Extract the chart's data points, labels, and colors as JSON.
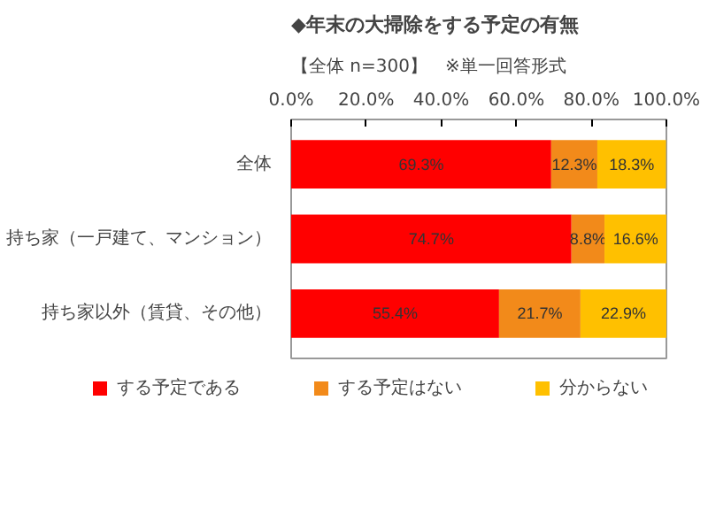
{
  "chart_data": {
    "type": "bar",
    "orientation": "horizontal",
    "stacked": true,
    "title": "◆年末の大掃除をする予定の有無",
    "subtitle": "【全体 n=300】　※単一回答形式",
    "categories": [
      "全体",
      "持ち家（一戸建て、マンション）",
      "持ち家以外（賃貸、その他）"
    ],
    "series": [
      {
        "name": "する予定である",
        "color": "#ff0000",
        "values": [
          69.3,
          74.7,
          55.4
        ],
        "value_labels": [
          "69.3%",
          "74.7%",
          "55.4%"
        ]
      },
      {
        "name": "する予定はない",
        "color": "#f28a1a",
        "values": [
          12.3,
          8.8,
          21.7
        ],
        "value_labels": [
          "12.3%",
          "8.8%",
          "21.7%"
        ]
      },
      {
        "name": "分からない",
        "color": "#ffc000",
        "values": [
          18.3,
          16.6,
          22.9
        ],
        "value_labels": [
          "18.3%",
          "16.6%",
          "22.9%"
        ]
      }
    ],
    "xlim": [
      0,
      100
    ],
    "xticks": [
      {
        "value": 0,
        "label": "0.0%"
      },
      {
        "value": 20,
        "label": "20.0%"
      },
      {
        "value": 40,
        "label": "40.0%"
      },
      {
        "value": 60,
        "label": "60.0%"
      },
      {
        "value": 80,
        "label": "80.0%"
      },
      {
        "value": 100,
        "label": "100.0%"
      }
    ],
    "legend": "bottom",
    "grid": false
  }
}
